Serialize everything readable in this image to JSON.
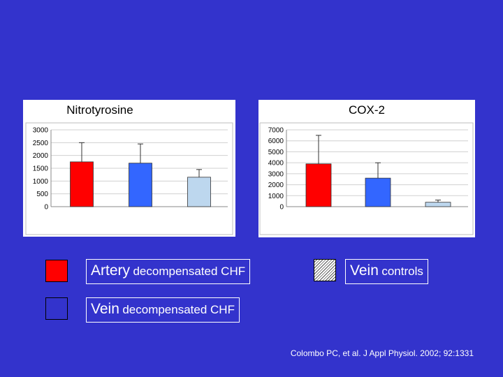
{
  "chart_data": [
    {
      "type": "bar",
      "title": "Nitrotyrosine",
      "categories": [
        "Artery decompensated CHF",
        "Vein decompensated CHF",
        "Vein controls"
      ],
      "values": [
        1750,
        1700,
        1150
      ],
      "error_upper": [
        2500,
        2450,
        1450
      ],
      "ylim": [
        0,
        3000
      ],
      "yticks": [
        0,
        500,
        1000,
        1500,
        2000,
        2500,
        3000
      ],
      "colors": [
        "#ff0000",
        "#3366ff",
        "#bdd7ee"
      ],
      "grid": true
    },
    {
      "type": "bar",
      "title": "COX-2",
      "categories": [
        "Artery decompensated CHF",
        "Vein decompensated CHF",
        "Vein controls"
      ],
      "values": [
        3900,
        2600,
        400
      ],
      "error_upper": [
        6500,
        4000,
        600
      ],
      "ylim": [
        0,
        7000
      ],
      "yticks": [
        0,
        1000,
        2000,
        3000,
        4000,
        5000,
        6000,
        7000
      ],
      "colors": [
        "#ff0000",
        "#3366ff",
        "#bdd7ee"
      ],
      "grid": true
    }
  ],
  "legend": {
    "artery": {
      "main": "Artery",
      "rest": "decompensated CHF",
      "color": "#ff0000"
    },
    "vein": {
      "main": "Vein",
      "rest": "decompensated CHF",
      "color": "#3333cc"
    },
    "controls": {
      "main": "Vein",
      "rest": "controls"
    }
  },
  "citation": "Colombo PC, et al. J Appl Physiol. 2002; 92:1331"
}
